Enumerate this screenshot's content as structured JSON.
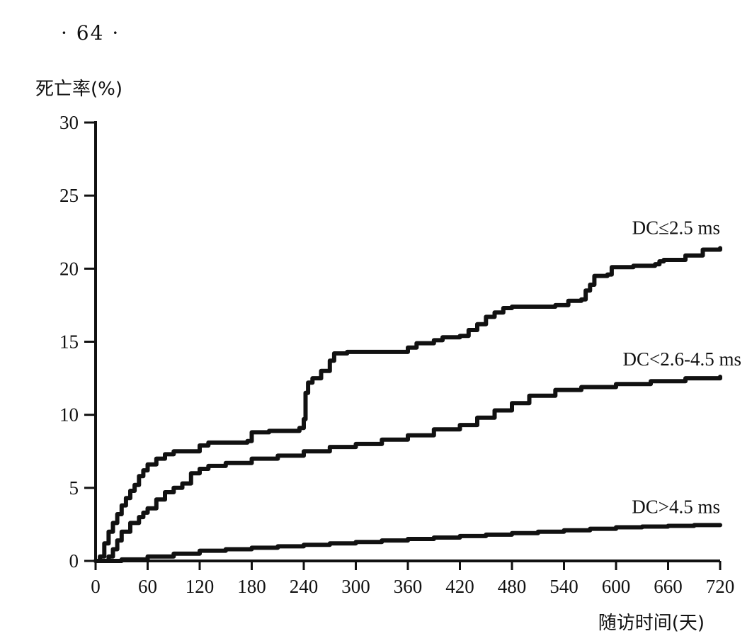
{
  "page_number": "· 64 ·",
  "chart_data": {
    "type": "line",
    "title": "",
    "xlabel": "随访时间(天)",
    "ylabel": "死亡率(%)",
    "xlim": [
      0,
      720
    ],
    "ylim": [
      0,
      30
    ],
    "x_ticks": [
      0,
      60,
      120,
      180,
      240,
      300,
      360,
      420,
      480,
      540,
      600,
      660,
      720
    ],
    "y_ticks": [
      0,
      5,
      10,
      15,
      20,
      25,
      30
    ],
    "grid": false,
    "legend": "labels at line ends",
    "step": true,
    "series": [
      {
        "name": "DC≤2.5 ms",
        "points": [
          [
            0,
            0
          ],
          [
            5,
            0.3
          ],
          [
            10,
            1.2
          ],
          [
            15,
            2.0
          ],
          [
            20,
            2.6
          ],
          [
            25,
            3.2
          ],
          [
            30,
            3.8
          ],
          [
            35,
            4.3
          ],
          [
            40,
            4.8
          ],
          [
            45,
            5.2
          ],
          [
            50,
            5.8
          ],
          [
            55,
            6.2
          ],
          [
            60,
            6.6
          ],
          [
            70,
            7.0
          ],
          [
            80,
            7.3
          ],
          [
            90,
            7.5
          ],
          [
            110,
            7.5
          ],
          [
            120,
            7.9
          ],
          [
            130,
            8.1
          ],
          [
            150,
            8.1
          ],
          [
            175,
            8.2
          ],
          [
            180,
            8.8
          ],
          [
            200,
            8.9
          ],
          [
            235,
            9.1
          ],
          [
            240,
            9.7
          ],
          [
            242,
            11.5
          ],
          [
            245,
            12.2
          ],
          [
            250,
            12.5
          ],
          [
            260,
            13.0
          ],
          [
            270,
            13.7
          ],
          [
            275,
            14.2
          ],
          [
            290,
            14.3
          ],
          [
            340,
            14.3
          ],
          [
            355,
            14.3
          ],
          [
            360,
            14.6
          ],
          [
            370,
            14.9
          ],
          [
            390,
            15.1
          ],
          [
            400,
            15.3
          ],
          [
            420,
            15.4
          ],
          [
            430,
            15.8
          ],
          [
            440,
            16.2
          ],
          [
            450,
            16.7
          ],
          [
            460,
            17.0
          ],
          [
            470,
            17.3
          ],
          [
            480,
            17.4
          ],
          [
            530,
            17.5
          ],
          [
            545,
            17.8
          ],
          [
            560,
            17.9
          ],
          [
            565,
            18.5
          ],
          [
            570,
            18.9
          ],
          [
            575,
            19.5
          ],
          [
            590,
            19.6
          ],
          [
            595,
            20.1
          ],
          [
            620,
            20.2
          ],
          [
            645,
            20.3
          ],
          [
            650,
            20.5
          ],
          [
            655,
            20.6
          ],
          [
            680,
            20.9
          ],
          [
            700,
            21.3
          ],
          [
            720,
            21.4
          ]
        ]
      },
      {
        "name": "DC<2.6-4.5 ms",
        "points": [
          [
            0,
            0
          ],
          [
            15,
            0.3
          ],
          [
            20,
            0.8
          ],
          [
            25,
            1.4
          ],
          [
            30,
            2.0
          ],
          [
            40,
            2.6
          ],
          [
            50,
            3.0
          ],
          [
            55,
            3.3
          ],
          [
            60,
            3.6
          ],
          [
            70,
            4.2
          ],
          [
            80,
            4.7
          ],
          [
            90,
            5.0
          ],
          [
            100,
            5.3
          ],
          [
            110,
            6.0
          ],
          [
            120,
            6.3
          ],
          [
            130,
            6.5
          ],
          [
            150,
            6.7
          ],
          [
            180,
            7.0
          ],
          [
            210,
            7.2
          ],
          [
            240,
            7.5
          ],
          [
            270,
            7.8
          ],
          [
            300,
            8.0
          ],
          [
            330,
            8.3
          ],
          [
            360,
            8.6
          ],
          [
            390,
            9.0
          ],
          [
            420,
            9.3
          ],
          [
            440,
            9.8
          ],
          [
            460,
            10.3
          ],
          [
            480,
            10.8
          ],
          [
            500,
            11.3
          ],
          [
            530,
            11.7
          ],
          [
            560,
            11.9
          ],
          [
            600,
            12.1
          ],
          [
            640,
            12.3
          ],
          [
            680,
            12.5
          ],
          [
            720,
            12.6
          ]
        ]
      },
      {
        "name": "DC>4.5 ms",
        "points": [
          [
            0,
            0
          ],
          [
            30,
            0.1
          ],
          [
            60,
            0.3
          ],
          [
            90,
            0.5
          ],
          [
            120,
            0.7
          ],
          [
            150,
            0.8
          ],
          [
            180,
            0.9
          ],
          [
            210,
            1.0
          ],
          [
            240,
            1.1
          ],
          [
            270,
            1.2
          ],
          [
            300,
            1.3
          ],
          [
            330,
            1.4
          ],
          [
            360,
            1.5
          ],
          [
            390,
            1.6
          ],
          [
            420,
            1.7
          ],
          [
            450,
            1.8
          ],
          [
            480,
            1.9
          ],
          [
            510,
            2.0
          ],
          [
            540,
            2.1
          ],
          [
            570,
            2.2
          ],
          [
            600,
            2.3
          ],
          [
            630,
            2.35
          ],
          [
            660,
            2.4
          ],
          [
            690,
            2.45
          ],
          [
            720,
            2.45
          ]
        ]
      }
    ]
  }
}
